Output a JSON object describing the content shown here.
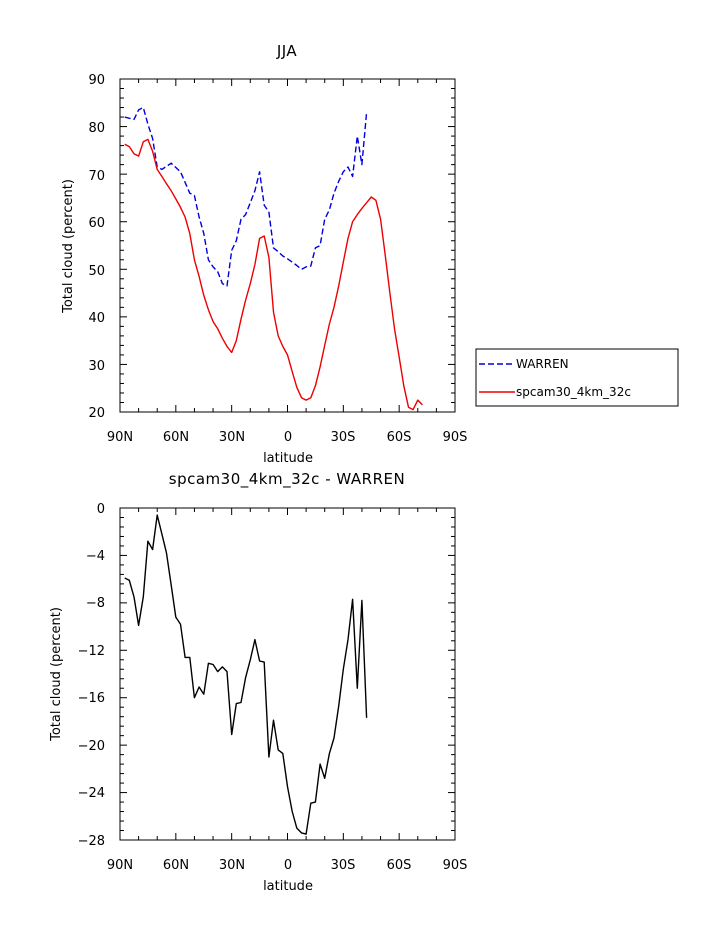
{
  "chart_data": [
    {
      "type": "line",
      "title": "JJA",
      "xlabel": "latitude",
      "ylabel": "Total cloud (percent)",
      "xlim": [
        -90,
        90
      ],
      "ylim": [
        20,
        90
      ],
      "x_ticks": [
        -90,
        -60,
        -30,
        0,
        30,
        60,
        90
      ],
      "x_tick_labels": [
        "90N",
        "60N",
        "30N",
        "0",
        "30S",
        "60S",
        "90S"
      ],
      "y_ticks": [
        20,
        30,
        40,
        50,
        60,
        70,
        80,
        90
      ],
      "y_tick_labels": [
        "20",
        "30",
        "40",
        "50",
        "60",
        "70",
        "80",
        "90"
      ],
      "legend_position": "right",
      "series": [
        {
          "name": "WARREN",
          "color": "#0000dd",
          "style": "dashed",
          "x": [
            -87.5,
            -82.5,
            -80,
            -77.5,
            -75,
            -72.5,
            -70,
            -67.5,
            -62.5,
            -57.5,
            -52.5,
            -50,
            -47.5,
            -45,
            -42.5,
            -40,
            -37.5,
            -35,
            -32.5,
            -30,
            -27.5,
            -25,
            -22.5,
            -20,
            -17.5,
            -15,
            -12.5,
            -10,
            -7.5,
            -5,
            -2.5,
            0,
            2.5,
            5,
            7.5,
            10,
            12.5,
            15,
            17.5,
            20,
            22.5,
            25,
            27.5,
            30,
            32.5,
            35,
            37.5,
            40,
            42.5,
            45,
            47.5,
            50,
            52.5,
            55,
            57.5
          ],
          "y": [
            82.0,
            81.5,
            83.5,
            84.0,
            80.5,
            77.5,
            71.5,
            71.0,
            72.3,
            70.5,
            66.0,
            65.5,
            61.0,
            57.5,
            52.0,
            50.5,
            49.5,
            47.0,
            46.5,
            54.0,
            56.0,
            60.5,
            61.5,
            64.0,
            66.5,
            70.5,
            63.5,
            62.0,
            54.5,
            53.7,
            52.8,
            52.2,
            51.5,
            50.8,
            50.0,
            50.5,
            50.7,
            54.5,
            55.0,
            60.5,
            62.5,
            66.0,
            68.5,
            70.5,
            71.5,
            69.5,
            78.0,
            72.0,
            83.0,
            null,
            null,
            null,
            null,
            null,
            null
          ]
        },
        {
          "name": "spcam30_4km_32c",
          "color": "#ee0000",
          "style": "solid",
          "x": [
            -87.5,
            -85,
            -82.5,
            -80,
            -77.5,
            -75,
            -72.5,
            -70,
            -67.5,
            -65,
            -62.5,
            -60,
            -57.5,
            -55,
            -52.5,
            -50,
            -47.5,
            -45,
            -42.5,
            -40,
            -37.5,
            -35,
            -32.5,
            -30,
            -27.5,
            -25,
            -22.5,
            -20,
            -17.5,
            -15,
            -12.5,
            -10,
            -7.5,
            -5,
            -2.5,
            0,
            2.5,
            5,
            7.5,
            10,
            12.5,
            15,
            17.5,
            20,
            22.5,
            25,
            27.5,
            30,
            32.5,
            35,
            37.5,
            40,
            42.5,
            45,
            47.5,
            50,
            52.5,
            55,
            57.5,
            60,
            62.5,
            65,
            67.5,
            70,
            72.5,
            75,
            77.5,
            80,
            82.5,
            85,
            87.5
          ],
          "y": [
            76.3,
            75.8,
            74.3,
            73.8,
            76.8,
            77.3,
            74.8,
            71.0,
            69.5,
            68.0,
            66.5,
            64.8,
            63.0,
            61.0,
            57.5,
            52.0,
            48.5,
            44.5,
            41.5,
            39.0,
            37.5,
            35.5,
            33.8,
            32.5,
            35.0,
            39.5,
            43.5,
            47.0,
            51.0,
            56.5,
            57.0,
            52.5,
            41.0,
            36.0,
            33.8,
            32.0,
            28.5,
            25.2,
            23.0,
            22.5,
            23.0,
            25.5,
            29.5,
            34.0,
            38.5,
            42.0,
            46.5,
            51.5,
            56.5,
            60.0,
            61.5,
            62.8,
            64.0,
            65.2,
            64.5,
            60.5,
            53.0,
            45.0,
            37.5,
            31.5,
            25.5,
            21.0,
            20.5,
            22.5,
            21.5,
            null,
            null,
            null,
            null,
            null,
            null
          ]
        }
      ]
    },
    {
      "type": "line",
      "title": "spcam30_4km_32c - WARREN",
      "xlabel": "latitude",
      "ylabel": "Total cloud (percent)",
      "xlim": [
        -90,
        90
      ],
      "ylim": [
        -28,
        0
      ],
      "x_ticks": [
        -90,
        -60,
        -30,
        0,
        30,
        60,
        90
      ],
      "x_tick_labels": [
        "90N",
        "60N",
        "30N",
        "0",
        "30S",
        "60S",
        "90S"
      ],
      "y_ticks": [
        -28,
        -24,
        -20,
        -16,
        -12,
        -8,
        -4,
        0
      ],
      "y_tick_labels": [
        "−28",
        "−24",
        "−20",
        "−16",
        "−12",
        "−8",
        "−4",
        "0"
      ],
      "series": [
        {
          "color": "#000000",
          "style": "solid",
          "x": [
            -87.5,
            -85,
            -82.5,
            -80,
            -77.5,
            -75,
            -72.5,
            -70,
            -67.5,
            -65,
            -62.5,
            -60,
            -57.5,
            -55,
            -52.5,
            -50,
            -47.5,
            -45,
            -42.5,
            -40,
            -37.5,
            -35,
            -32.5,
            -30,
            -27.5,
            -25,
            -22.5,
            -20,
            -17.5,
            -15,
            -12.5,
            -10,
            -7.5,
            -5,
            -2.5,
            0,
            2.5,
            5,
            7.5,
            10,
            12.5,
            15,
            17.5,
            20,
            22.5,
            25,
            27.5,
            30,
            32.5,
            35,
            37.5,
            40,
            42.5,
            45,
            47.5,
            50,
            52.5,
            55,
            57.5
          ],
          "y": [
            -5.9,
            -6.1,
            -7.5,
            -9.9,
            -7.5,
            -2.8,
            -3.5,
            -0.6,
            -2.2,
            -3.8,
            -6.5,
            -9.2,
            -9.8,
            -12.6,
            -12.6,
            -16.0,
            -15.1,
            -15.7,
            -13.1,
            -13.2,
            -13.8,
            -13.4,
            -13.8,
            -19.1,
            -16.5,
            -16.4,
            -14.3,
            -12.8,
            -11.1,
            -12.9,
            -13.0,
            -21.0,
            -17.9,
            -20.4,
            -20.7,
            -23.5,
            -25.6,
            -27.0,
            -27.4,
            -27.5,
            -24.9,
            -24.8,
            -21.6,
            -22.8,
            -20.7,
            -19.4,
            -16.7,
            -13.6,
            -11.1,
            -7.7,
            -15.2,
            -7.8,
            -17.7,
            null,
            null,
            null,
            null,
            null,
            null
          ]
        }
      ]
    }
  ]
}
